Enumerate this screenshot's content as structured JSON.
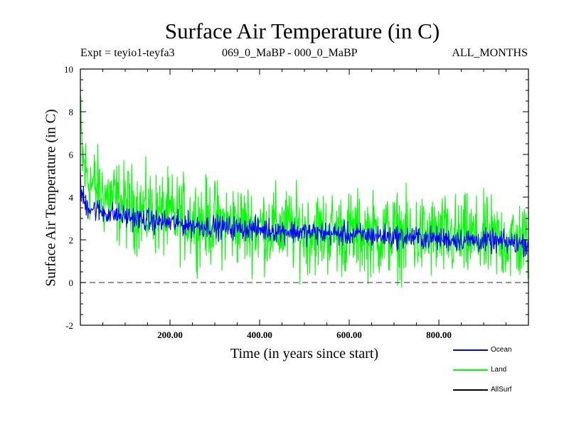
{
  "chart_data": {
    "type": "line",
    "title": "Surface Air Temperature (in C)",
    "subtitle_left": "Expt = teyio1-teyfa3",
    "subtitle_center": "069_0_MaBP - 000_0_MaBP",
    "subtitle_right": "ALL_MONTHS",
    "xlabel": "Time (in years since start)",
    "ylabel": "Surface Air Temperature (in C)",
    "xlim": [
      0,
      1000
    ],
    "ylim": [
      -2,
      10
    ],
    "xticks": [
      "200.00",
      "400.00",
      "600.00",
      "800.00"
    ],
    "xtick_values": [
      200,
      400,
      600,
      800
    ],
    "yticks": [
      "-2",
      "0",
      "2",
      "4",
      "6",
      "8",
      "10"
    ],
    "ytick_values": [
      -2,
      0,
      2,
      4,
      6,
      8,
      10
    ],
    "reference_line": 0,
    "series": [
      {
        "name": "Land",
        "color": "#00ff00",
        "x": [
          0,
          5,
          10,
          25,
          50,
          100,
          150,
          200,
          300,
          400,
          500,
          600,
          700,
          800,
          900,
          1000
        ],
        "mean": [
          7.0,
          5.8,
          5.2,
          4.6,
          4.1,
          3.6,
          3.3,
          3.1,
          2.8,
          2.6,
          2.4,
          2.3,
          2.2,
          2.1,
          2.0,
          1.9
        ],
        "spread": [
          2.2,
          2.0,
          1.9,
          1.8,
          1.8,
          1.8,
          1.8,
          1.8,
          1.8,
          1.8,
          1.8,
          1.8,
          1.8,
          1.8,
          1.8,
          1.8
        ]
      },
      {
        "name": "Ocean",
        "color": "#0000ff",
        "x": [
          0,
          5,
          10,
          25,
          50,
          100,
          150,
          200,
          300,
          400,
          500,
          600,
          700,
          800,
          900,
          1000
        ],
        "mean": [
          4.5,
          4.0,
          3.7,
          3.5,
          3.3,
          3.1,
          2.9,
          2.8,
          2.6,
          2.5,
          2.35,
          2.25,
          2.15,
          2.05,
          1.95,
          1.8
        ],
        "spread": [
          0.8,
          0.65,
          0.6,
          0.55,
          0.5,
          0.5,
          0.5,
          0.5,
          0.5,
          0.5,
          0.5,
          0.5,
          0.5,
          0.5,
          0.5,
          0.5
        ]
      },
      {
        "name": "AllSurf",
        "color": "#000000",
        "x": [],
        "mean": [],
        "spread": []
      }
    ],
    "legend": [
      {
        "label": "Ocean",
        "color": "#0000ff"
      },
      {
        "label": "Land",
        "color": "#00ff00"
      },
      {
        "label": "AllSurf",
        "color": "#000000"
      }
    ]
  }
}
